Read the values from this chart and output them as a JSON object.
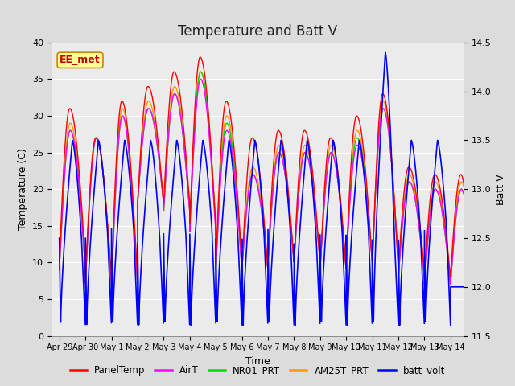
{
  "title": "Temperature and Batt V",
  "xlabel": "Time",
  "ylabel_left": "Temperature (C)",
  "ylabel_right": "Batt V",
  "annotation": "EE_met",
  "ylim_left": [
    0,
    40
  ],
  "ylim_right": [
    11.5,
    14.5
  ],
  "x_tick_labels": [
    "Apr 29",
    "Apr 30",
    "May 1",
    "May 2",
    "May 3",
    "May 4",
    "May 5",
    "May 6",
    "May 7",
    "May 8",
    "May 9",
    "May 10",
    "May 11",
    "May 12",
    "May 13",
    "May 14"
  ],
  "x_tick_positions": [
    0,
    1,
    2,
    3,
    4,
    5,
    6,
    7,
    8,
    9,
    10,
    11,
    12,
    13,
    14,
    15
  ],
  "colors": {
    "PanelTemp": "#ff0000",
    "AirT": "#ff00ff",
    "NR01_PRT": "#00dd00",
    "AM25T_PRT": "#ff9900",
    "batt_volt": "#0000ff"
  },
  "background_color": "#dcdcdc",
  "plot_bg_color": "#ebebeb",
  "title_fontsize": 12,
  "axis_fontsize": 9,
  "tick_fontsize": 8,
  "annotation_facecolor": "#ffff99",
  "annotation_edgecolor": "#cc8800",
  "annotation_textcolor": "#cc0000"
}
